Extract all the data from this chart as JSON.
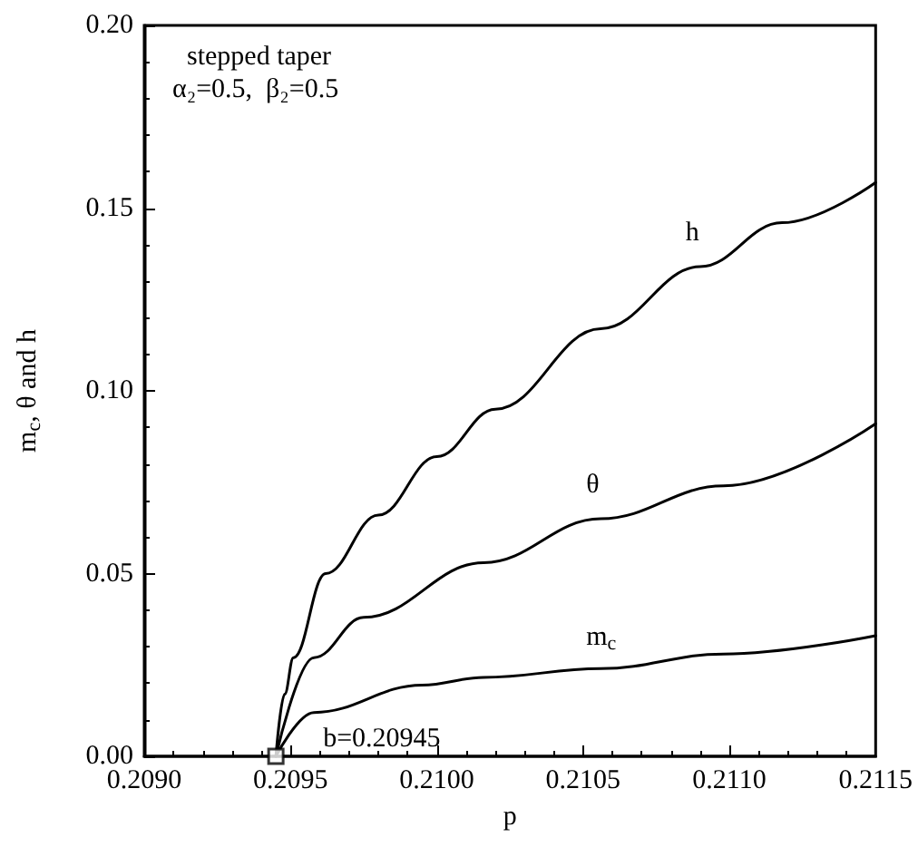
{
  "chart_data": {
    "type": "line",
    "xlabel": "p",
    "ylabel": "m$_{c}$, θ and h",
    "annotations": [
      "stepped taper",
      "α₂=0.5,  β₂=0.5",
      "b=0.20945"
    ],
    "marker": "none",
    "line_style": "solid",
    "grid": false,
    "legend": false,
    "xlim": [
      0.209,
      0.2115
    ],
    "ylim": [
      0,
      0.2
    ],
    "xticks": [
      {
        "value": 0.209,
        "label": "0.2090"
      },
      {
        "value": 0.2095,
        "label": "0.2095"
      },
      {
        "value": 0.21,
        "label": "0.2100"
      },
      {
        "value": 0.2105,
        "label": "0.2105"
      },
      {
        "value": 0.211,
        "label": "0.2110"
      },
      {
        "value": 0.2115,
        "label": "0.2115"
      }
    ],
    "yticks": [
      {
        "value": 0,
        "label": "0.00"
      },
      {
        "value": 0.05,
        "label": "0.05"
      },
      {
        "value": 0.1,
        "label": "0.10"
      },
      {
        "value": 0.15,
        "label": "0.15"
      },
      {
        "value": 0.2,
        "label": "0.20"
      }
    ],
    "series": [
      {
        "name": "h",
        "color": "#000000",
        "x": [
          0.20945,
          0.20948,
          0.20951,
          0.20962,
          0.2098,
          0.21,
          0.2102,
          0.21056,
          0.2109,
          0.21118,
          0.2115
        ],
        "values": [
          0,
          0.017,
          0.027,
          0.05,
          0.066,
          0.082,
          0.095,
          0.117,
          0.134,
          0.146,
          0.157
        ]
      },
      {
        "name": "θ",
        "color": "#000000",
        "x": [
          0.20945,
          0.20958,
          0.20975,
          0.21016,
          0.21056,
          0.21098,
          0.2115
        ],
        "values": [
          0,
          0.027,
          0.038,
          0.053,
          0.065,
          0.074,
          0.091
        ]
      },
      {
        "name": "m$_{c}$",
        "color": "#000000",
        "x": [
          0.20945,
          0.20958,
          0.20995,
          0.21016,
          0.21056,
          0.21098,
          0.2115
        ],
        "values": [
          0,
          0.012,
          0.0195,
          0.0216,
          0.024,
          0.028,
          0.033
        ]
      },
      {
        "type": "scatter",
        "marker": "square",
        "color": "#000000",
        "x": [
          0.20945
        ],
        "values": [
          0
        ]
      }
    ]
  }
}
